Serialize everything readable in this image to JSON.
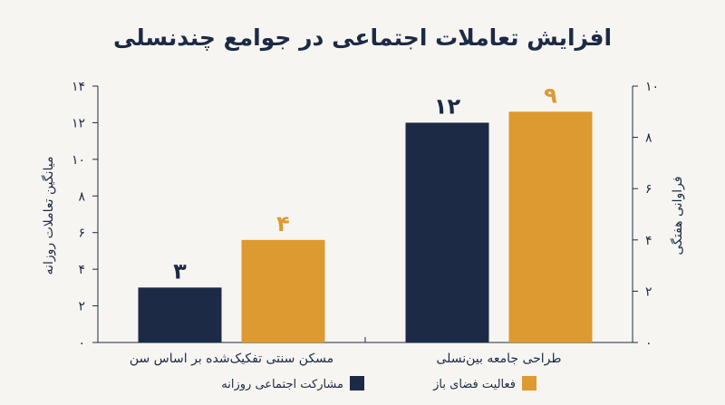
{
  "chart_data": {
    "type": "bar",
    "title": "افزایش تعاملات اجتماعی در جوامع چندنسلی",
    "categories": [
      "مسکن سنتی تفکیک‌شده بر اساس سن",
      "طراحی جامعه بین‌نسلی"
    ],
    "series": [
      {
        "name": "مشارکت اجتماعی روزانه",
        "axis": "left",
        "color": "#1c2a45",
        "values": [
          3,
          12
        ],
        "labels": [
          "۳",
          "۱۲"
        ]
      },
      {
        "name": "فعالیت فضای باز",
        "axis": "right",
        "color": "#dd9a30",
        "values": [
          4,
          9
        ],
        "labels": [
          "۴",
          "۹"
        ]
      }
    ],
    "y_left": {
      "label": "میانگین تعاملات روزانه",
      "range": [
        0,
        14
      ],
      "ticks": [
        0,
        2,
        4,
        6,
        8,
        10,
        12,
        14
      ],
      "tick_labels": [
        "۰",
        "۲",
        "۴",
        "۶",
        "۸",
        "۱۰",
        "۱۲",
        "۱۴"
      ]
    },
    "y_right": {
      "label": "فراوانی هفتگی",
      "range": [
        0,
        10
      ],
      "ticks": [
        0,
        2,
        4,
        6,
        8,
        10
      ],
      "tick_labels": [
        "۰",
        "۲",
        "۴",
        "۶",
        "۸",
        "۱۰"
      ]
    },
    "legend": "bottom",
    "grid": false
  }
}
